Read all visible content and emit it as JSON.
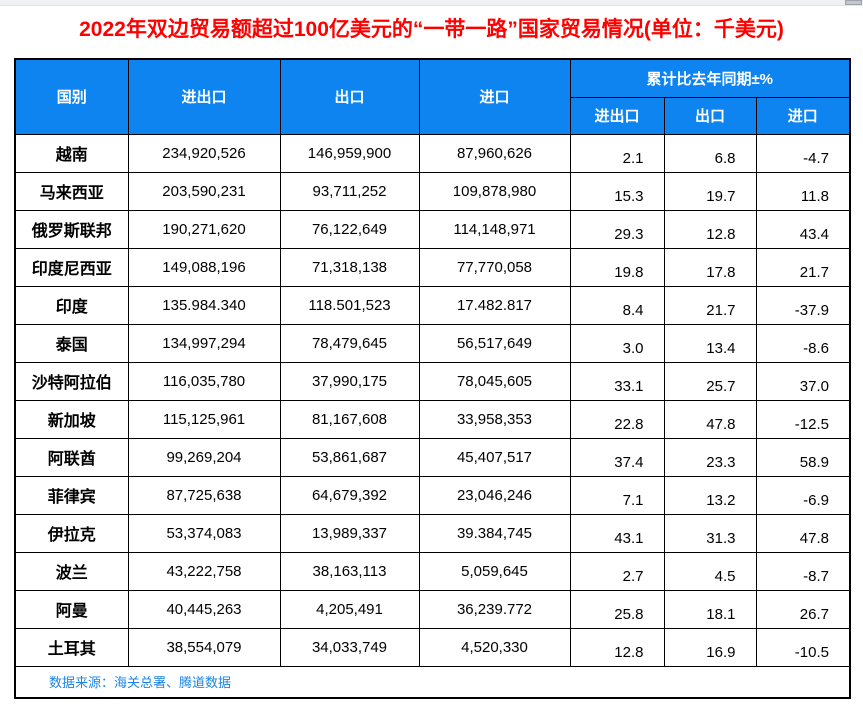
{
  "page": {
    "title": "2022年双边贸易额超过100亿美元的“一带一路”国家贸易情况(单位：千美元)"
  },
  "colors": {
    "title": "#ff0000",
    "header_bg": "#0d84f0",
    "header_text": "#ffffff",
    "border": "#000000",
    "source_text": "#1b84e7",
    "scrollbar_track": "#eef0f3",
    "scrollbar_thumb": "#c2c7cd"
  },
  "table": {
    "headers": {
      "country": "国别",
      "total": "进出口",
      "export": "出口",
      "import": "进口",
      "yoy_group": "累计比去年同期±%",
      "yoy_total": "进出口",
      "yoy_export": "出口",
      "yoy_import": "进口"
    },
    "rows": [
      {
        "country": "越南",
        "total": "234,920,526",
        "export": "146,959,900",
        "import": "87,960,626",
        "yoy_total": "2.1",
        "yoy_export": "6.8",
        "yoy_import": "-4.7"
      },
      {
        "country": "马来西亚",
        "total": "203,590,231",
        "export": "93,711,252",
        "import": "109,878,980",
        "yoy_total": "15.3",
        "yoy_export": "19.7",
        "yoy_import": "11.8"
      },
      {
        "country": "俄罗斯联邦",
        "total": "190,271,620",
        "export": "76,122,649",
        "import": "114,148,971",
        "yoy_total": "29.3",
        "yoy_export": "12.8",
        "yoy_import": "43.4"
      },
      {
        "country": "印度尼西亚",
        "total": "149,088,196",
        "export": "71,318,138",
        "import": "77,770,058",
        "yoy_total": "19.8",
        "yoy_export": "17.8",
        "yoy_import": "21.7"
      },
      {
        "country": "印度",
        "total": "135.984.340",
        "export": "118.501,523",
        "import": "17.482.817",
        "yoy_total": "8.4",
        "yoy_export": "21.7",
        "yoy_import": "-37.9"
      },
      {
        "country": "泰国",
        "total": "134,997,294",
        "export": "78,479,645",
        "import": "56,517,649",
        "yoy_total": "3.0",
        "yoy_export": "13.4",
        "yoy_import": "-8.6"
      },
      {
        "country": "沙特阿拉伯",
        "total": "116,035,780",
        "export": "37,990,175",
        "import": "78,045,605",
        "yoy_total": "33.1",
        "yoy_export": "25.7",
        "yoy_import": "37.0"
      },
      {
        "country": "新加坡",
        "total": "115,125,961",
        "export": "81,167,608",
        "import": "33,958,353",
        "yoy_total": "22.8",
        "yoy_export": "47.8",
        "yoy_import": "-12.5"
      },
      {
        "country": "阿联酋",
        "total": "99,269,204",
        "export": "53,861,687",
        "import": "45,407,517",
        "yoy_total": "37.4",
        "yoy_export": "23.3",
        "yoy_import": "58.9"
      },
      {
        "country": "菲律宾",
        "total": "87,725,638",
        "export": "64,679,392",
        "import": "23,046,246",
        "yoy_total": "7.1",
        "yoy_export": "13.2",
        "yoy_import": "-6.9"
      },
      {
        "country": "伊拉克",
        "total": "53,374,083",
        "export": "13,989,337",
        "import": "39.384,745",
        "yoy_total": "43.1",
        "yoy_export": "31.3",
        "yoy_import": "47.8"
      },
      {
        "country": "波兰",
        "total": "43,222,758",
        "export": "38,163,113",
        "import": "5,059,645",
        "yoy_total": "2.7",
        "yoy_export": "4.5",
        "yoy_import": "-8.7"
      },
      {
        "country": "阿曼",
        "total": "40,445,263",
        "export": "4,205,491",
        "import": "36,239.772",
        "yoy_total": "25.8",
        "yoy_export": "18.1",
        "yoy_import": "26.7"
      },
      {
        "country": "土耳其",
        "total": "38,554,079",
        "export": "34,033,749",
        "import": "4,520,330",
        "yoy_total": "12.8",
        "yoy_export": "16.9",
        "yoy_import": "-10.5"
      }
    ],
    "source": "数据来源：海关总署、腾道数据"
  },
  "chart_data": {
    "type": "table",
    "title": "2022年双边贸易额超过100亿美元的“一带一路”国家贸易情况(单位：千美元)",
    "columns": [
      "国别",
      "进出口",
      "出口",
      "进口",
      "累计比去年同期±% 进出口",
      "累计比去年同期±% 出口",
      "累计比去年同期±% 进口"
    ],
    "rows": [
      [
        "越南",
        "234,920,526",
        "146,959,900",
        "87,960,626",
        "2.1",
        "6.8",
        "-4.7"
      ],
      [
        "马来西亚",
        "203,590,231",
        "93,711,252",
        "109,878,980",
        "15.3",
        "19.7",
        "11.8"
      ],
      [
        "俄罗斯联邦",
        "190,271,620",
        "76,122,649",
        "114,148,971",
        "29.3",
        "12.8",
        "43.4"
      ],
      [
        "印度尼西亚",
        "149,088,196",
        "71,318,138",
        "77,770,058",
        "19.8",
        "17.8",
        "21.7"
      ],
      [
        "印度",
        "135.984.340",
        "118.501,523",
        "17.482.817",
        "8.4",
        "21.7",
        "-37.9"
      ],
      [
        "泰国",
        "134,997,294",
        "78,479,645",
        "56,517,649",
        "3.0",
        "13.4",
        "-8.6"
      ],
      [
        "沙特阿拉伯",
        "116,035,780",
        "37,990,175",
        "78,045,605",
        "33.1",
        "25.7",
        "37.0"
      ],
      [
        "新加坡",
        "115,125,961",
        "81,167,608",
        "33,958,353",
        "22.8",
        "47.8",
        "-12.5"
      ],
      [
        "阿联酋",
        "99,269,204",
        "53,861,687",
        "45,407,517",
        "37.4",
        "23.3",
        "58.9"
      ],
      [
        "菲律宾",
        "87,725,638",
        "64,679,392",
        "23,046,246",
        "7.1",
        "13.2",
        "-6.9"
      ],
      [
        "伊拉克",
        "53,374,083",
        "13,989,337",
        "39.384,745",
        "43.1",
        "31.3",
        "47.8"
      ],
      [
        "波兰",
        "43,222,758",
        "38,163,113",
        "5,059,645",
        "2.7",
        "4.5",
        "-8.7"
      ],
      [
        "阿曼",
        "40,445,263",
        "4,205,491",
        "36,239.772",
        "25.8",
        "18.1",
        "26.7"
      ],
      [
        "土耳其",
        "38,554,079",
        "34,033,749",
        "4,520,330",
        "12.8",
        "16.9",
        "-10.5"
      ]
    ],
    "source": "数据来源：海关总署、腾道数据"
  }
}
